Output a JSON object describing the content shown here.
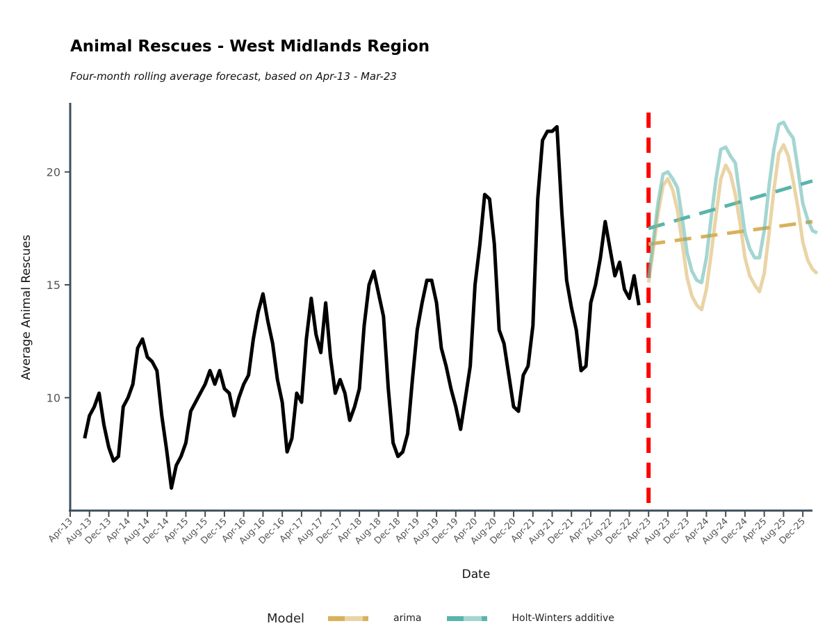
{
  "title": "Animal Rescues - West Midlands Region",
  "subtitle": "Four-month rolling average forecast, based on Apr-13 - Mar-23",
  "colors": {
    "actual": "#000000",
    "arima": "#d9b15c",
    "holt": "#5ab4ac",
    "cutoff": "#ff0000",
    "axis": "#3d4f5c"
  },
  "legend": {
    "title": "Model",
    "items": [
      {
        "label": "arima",
        "color": "#d9b15c"
      },
      {
        "label": "Holt-Winters additive",
        "color": "#5ab4ac"
      }
    ]
  },
  "chart_data": {
    "type": "line",
    "title": "Animal Rescues - West Midlands Region",
    "subtitle": "Four-month rolling average forecast, based on Apr-13 - Mar-23",
    "xlabel": "Date",
    "ylabel": "Average Animal Rescues",
    "x_ticks": [
      "Apr-13",
      "Aug-13",
      "Dec-13",
      "Apr-14",
      "Aug-14",
      "Dec-14",
      "Apr-15",
      "Aug-15",
      "Dec-15",
      "Apr-16",
      "Aug-16",
      "Dec-16",
      "Apr-17",
      "Aug-17",
      "Dec-17",
      "Apr-18",
      "Aug-18",
      "Dec-18",
      "Apr-19",
      "Aug-19",
      "Dec-19",
      "Apr-20",
      "Aug-20",
      "Dec-20",
      "Apr-21",
      "Aug-21",
      "Dec-21",
      "Apr-22",
      "Aug-22",
      "Dec-22",
      "Apr-23",
      "Aug-23",
      "Dec-23",
      "Apr-24",
      "Aug-24",
      "Dec-24",
      "Apr-25",
      "Aug-25",
      "Dec-25"
    ],
    "x_range": [
      "Apr-13",
      "Feb-26"
    ],
    "y_ticks": [
      10,
      15,
      20
    ],
    "ylim": [
      5.0,
      23.0
    ],
    "grid": false,
    "legend_position": "bottom",
    "forecast_start": "Apr-23",
    "series": [
      {
        "name": "actual",
        "style": "solid",
        "start": "Jul-13",
        "values": [
          8.2,
          9.2,
          9.6,
          10.2,
          8.8,
          7.8,
          7.2,
          7.4,
          9.6,
          10,
          10.6,
          12.2,
          12.6,
          11.8,
          11.6,
          11.2,
          9.2,
          7.7,
          6,
          7,
          7.4,
          8,
          9.4,
          9.8,
          10.2,
          10.6,
          11.2,
          10.6,
          11.2,
          10.4,
          10.2,
          9.2,
          10,
          10.6,
          11,
          12.6,
          13.8,
          14.6,
          13.4,
          12.4,
          10.8,
          9.8,
          7.6,
          8.2,
          10.2,
          9.8,
          12.6,
          14.4,
          12.8,
          12,
          14.2,
          11.8,
          10.2,
          10.8,
          10.2,
          9,
          9.6,
          10.4,
          13.2,
          15,
          15.6,
          14.6,
          13.6,
          10.4,
          8,
          7.4,
          7.6,
          8.4,
          10.8,
          13,
          14.2,
          15.2,
          15.2,
          14.2,
          12.2,
          11.4,
          10.4,
          9.6,
          8.6,
          10,
          11.4,
          15,
          16.8,
          19,
          18.8,
          16.8,
          13,
          12.4,
          11,
          9.6,
          9.4,
          11,
          11.4,
          13.2,
          18.8,
          21.4,
          21.8,
          21.8,
          22,
          18.2,
          15.2,
          14,
          13,
          11.2,
          11.4,
          14.2,
          15,
          16.2,
          17.8,
          16.6,
          15.4,
          16,
          14.8,
          14.4,
          15.4,
          14.1
        ]
      },
      {
        "name": "arima",
        "style": "seasonal",
        "start": "Apr-23",
        "values": [
          15.1,
          16.6,
          18.2,
          19.4,
          19.7,
          19.2,
          18.3,
          16.8,
          15.3,
          14.5,
          14.1,
          13.9,
          14.8,
          16.4,
          18.1,
          19.7,
          20.3,
          19.9,
          19,
          17.7,
          16.2,
          15.4,
          15,
          14.7,
          15.5,
          17.3,
          19.2,
          20.8,
          21.2,
          20.7,
          19.6,
          18.4,
          16.9,
          16.1,
          15.7,
          15.5
        ]
      },
      {
        "name": "arima",
        "style": "dashed",
        "start": "Apr-23",
        "values": [
          16.8,
          17.8
        ]
      },
      {
        "name": "Holt-Winters additive",
        "style": "seasonal",
        "start": "Apr-23",
        "values": [
          15.3,
          17,
          18.7,
          19.9,
          20,
          19.7,
          19.3,
          17.9,
          16.4,
          15.6,
          15.2,
          15.1,
          16.2,
          18,
          19.7,
          21,
          21.1,
          20.7,
          20.4,
          18.8,
          17.3,
          16.6,
          16.2,
          16.2,
          17.4,
          19.4,
          21,
          22.1,
          22.2,
          21.8,
          21.5,
          20.1,
          18.6,
          17.9,
          17.4,
          17.3
        ]
      },
      {
        "name": "Holt-Winters additive",
        "style": "dashed",
        "start": "Apr-23",
        "values": [
          17.5,
          19.6
        ]
      }
    ]
  }
}
